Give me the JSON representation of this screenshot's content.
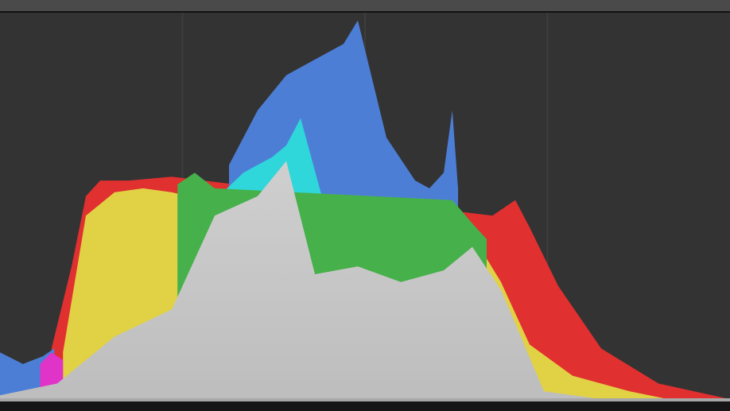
{
  "histogram": {
    "bins": 256,
    "channels_overlap_colors": {
      "background": "#333333",
      "gridline": "#3d3d3d",
      "luminance": "#c6c6c6",
      "red": "#e03030",
      "green": "#46b04a",
      "blue": "#4d7ed6",
      "yellow": "#e1d144",
      "cyan": "#2fd6da",
      "magenta": "#e033c8",
      "red_highlight": "#ef5858",
      "yellow_highlight": "#f2e24c"
    },
    "grid_divisions": 4
  },
  "chart_data": {
    "type": "area",
    "x_range": [
      0,
      255
    ],
    "y_range": [
      0,
      1
    ],
    "grid": true,
    "series": [
      {
        "color": "#c6c6c6",
        "points": [
          [
            0,
            0.02
          ],
          [
            20,
            0.05
          ],
          [
            40,
            0.17
          ],
          [
            60,
            0.24
          ],
          [
            75,
            0.48
          ],
          [
            90,
            0.53
          ],
          [
            100,
            0.62
          ],
          [
            110,
            0.33
          ],
          [
            125,
            0.35
          ],
          [
            140,
            0.31
          ],
          [
            155,
            0.34
          ],
          [
            165,
            0.4
          ],
          [
            175,
            0.29
          ],
          [
            190,
            0.03
          ],
          [
            220,
            0.0
          ],
          [
            255,
            0.0
          ]
        ]
      },
      {
        "color": "#2fd6da",
        "points": [
          [
            75,
            0.52
          ],
          [
            85,
            0.59
          ],
          [
            95,
            0.63
          ],
          [
            100,
            0.66
          ],
          [
            105,
            0.73
          ],
          [
            115,
            0.46
          ],
          [
            125,
            0.38
          ],
          [
            135,
            0.34
          ],
          [
            145,
            0.36
          ],
          [
            155,
            0.38
          ],
          [
            162,
            0.47
          ]
        ]
      },
      {
        "color": "#4d7ed6",
        "points": [
          [
            80,
            0.61
          ],
          [
            90,
            0.75
          ],
          [
            100,
            0.84
          ],
          [
            110,
            0.88
          ],
          [
            120,
            0.92
          ],
          [
            125,
            0.98
          ],
          [
            135,
            0.68
          ],
          [
            145,
            0.57
          ],
          [
            150,
            0.55
          ],
          [
            155,
            0.59
          ],
          [
            158,
            0.75
          ],
          [
            160,
            0.55
          ]
        ]
      },
      {
        "color": "#e1d144",
        "points": [
          [
            22,
            0.13
          ],
          [
            30,
            0.48
          ],
          [
            40,
            0.54
          ],
          [
            50,
            0.55
          ],
          [
            60,
            0.54
          ],
          [
            72,
            0.52
          ],
          [
            165,
            0.43
          ],
          [
            175,
            0.31
          ],
          [
            185,
            0.15
          ],
          [
            200,
            0.07
          ],
          [
            220,
            0.03
          ],
          [
            240,
            0.0
          ]
        ]
      },
      {
        "color": "#e03030",
        "points": [
          [
            18,
            0.14
          ],
          [
            25,
            0.35
          ],
          [
            30,
            0.53
          ],
          [
            35,
            0.57
          ],
          [
            45,
            0.57
          ],
          [
            60,
            0.58
          ],
          [
            172,
            0.48
          ],
          [
            180,
            0.52
          ],
          [
            185,
            0.45
          ],
          [
            195,
            0.3
          ],
          [
            210,
            0.14
          ],
          [
            230,
            0.05
          ],
          [
            255,
            0.01
          ]
        ]
      },
      {
        "color": "#46b04a",
        "points": [
          [
            62,
            0.56
          ],
          [
            68,
            0.59
          ],
          [
            75,
            0.55
          ],
          [
            158,
            0.52
          ],
          [
            165,
            0.46
          ],
          [
            170,
            0.42
          ]
        ]
      },
      {
        "color": "#4d7ed6",
        "points": [
          [
            0,
            0.13
          ],
          [
            8,
            0.1
          ],
          [
            15,
            0.12
          ],
          [
            19,
            0.14
          ]
        ]
      },
      {
        "color": "#e033c8",
        "points": [
          [
            14,
            0.1
          ],
          [
            18,
            0.13
          ],
          [
            22,
            0.11
          ]
        ]
      }
    ]
  }
}
